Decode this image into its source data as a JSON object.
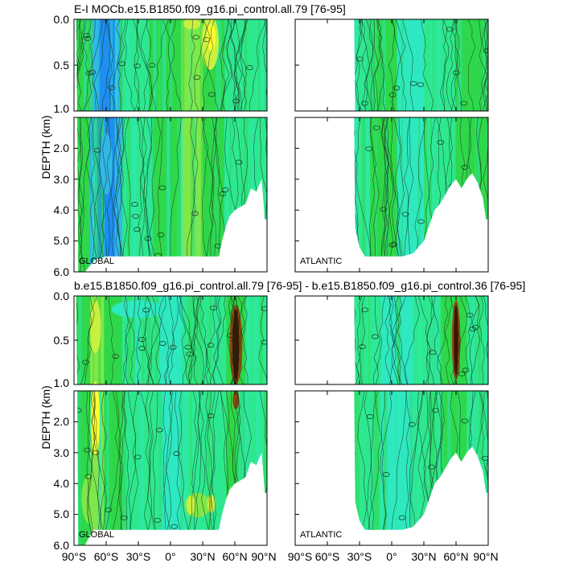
{
  "palette": {
    "blue": "#1e8ef0",
    "light_blue": "#2fb8e8",
    "cyan": "#2ee8c0",
    "cyan_green": "#2ee890",
    "green": "#2ed84a",
    "light_green": "#7ee84a",
    "yellow_green": "#c8f040",
    "yellow": "#ffff30",
    "brown": "#8a4a10",
    "dark_brown": "#3a1500",
    "contour_line": "#1a2e1a"
  },
  "chart_data": [
    {
      "type": "heatmap",
      "title": "E-I MOCb.e15.B1850.f09_g16.pi_control.all.79 [76-95]",
      "region_label": "GLOBAL",
      "ylabel": "DEPTH (km)",
      "x_range": [
        -90,
        90
      ],
      "y_range_upper": [
        0,
        1
      ],
      "y_range_lower": [
        1,
        6
      ],
      "y_ticks_upper": [
        "0.0",
        "0.5",
        "1.0"
      ],
      "y_ticks_lower": [
        "2.0",
        "3.0",
        "4.0",
        "5.0",
        "6.0"
      ],
      "ocean_floor": [
        [
          -90,
          -1
        ],
        [
          -88,
          -1
        ],
        [
          -87,
          1.0
        ],
        [
          -86,
          6.0
        ],
        [
          -80,
          6.0
        ],
        [
          -70,
          5.6
        ],
        [
          -60,
          5.5
        ],
        [
          -50,
          5.5
        ],
        [
          -40,
          5.5
        ],
        [
          -30,
          5.5
        ],
        [
          -20,
          5.5
        ],
        [
          -10,
          5.5
        ],
        [
          0,
          5.5
        ],
        [
          10,
          5.5
        ],
        [
          20,
          5.5
        ],
        [
          30,
          5.5
        ],
        [
          45,
          5.5
        ],
        [
          48,
          5.0
        ],
        [
          52,
          4.5
        ],
        [
          55,
          4.2
        ],
        [
          60,
          4.0
        ],
        [
          65,
          3.9
        ],
        [
          70,
          3.8
        ],
        [
          75,
          3.3
        ],
        [
          80,
          3.4
        ],
        [
          85,
          3.0
        ],
        [
          88,
          4.3
        ],
        [
          90,
          4.3
        ]
      ],
      "fill_bands": [
        {
          "x": [
            -90,
            -75
          ],
          "color": "green"
        },
        {
          "x": [
            -75,
            -68
          ],
          "color": "light_blue"
        },
        {
          "x": [
            -68,
            -52
          ],
          "color": "blue"
        },
        {
          "x": [
            -52,
            -45
          ],
          "color": "light_blue"
        },
        {
          "x": [
            -45,
            -20
          ],
          "color": "cyan_green"
        },
        {
          "x": [
            -20,
            10
          ],
          "color": "green"
        },
        {
          "x": [
            10,
            30
          ],
          "color": "light_green"
        },
        {
          "x": [
            30,
            50
          ],
          "color": "green"
        },
        {
          "x": [
            50,
            90
          ],
          "color": "cyan_green"
        }
      ],
      "patches": [
        {
          "x": 37,
          "y": 0.25,
          "rx": 8,
          "ry": 0.3,
          "color": "yellow_green"
        },
        {
          "x": 38,
          "y": 0.2,
          "rx": 4,
          "ry": 0.15,
          "color": "yellow"
        },
        {
          "x": 20,
          "y": 0.05,
          "rx": 8,
          "ry": 0.06,
          "color": "yellow_green"
        },
        {
          "x": -60,
          "y": 2.5,
          "rx": 6,
          "ry": 1.0,
          "color": "light_blue"
        }
      ]
    },
    {
      "type": "heatmap",
      "title": "",
      "region_label": "ATLANTIC",
      "x_range": [
        -90,
        90
      ],
      "y_range_upper": [
        0,
        1
      ],
      "y_range_lower": [
        1,
        6
      ],
      "ocean_floor": [
        [
          -90,
          -1
        ],
        [
          -35,
          -1
        ],
        [
          -34,
          4.6
        ],
        [
          -30,
          5.2
        ],
        [
          -25,
          5.5
        ],
        [
          -10,
          5.5
        ],
        [
          0,
          5.5
        ],
        [
          10,
          5.5
        ],
        [
          20,
          5.4
        ],
        [
          25,
          5.2
        ],
        [
          30,
          5.0
        ],
        [
          35,
          4.5
        ],
        [
          40,
          4.0
        ],
        [
          45,
          3.8
        ],
        [
          50,
          3.5
        ],
        [
          55,
          3.2
        ],
        [
          60,
          3.0
        ],
        [
          65,
          3.3
        ],
        [
          70,
          3.0
        ],
        [
          75,
          2.8
        ],
        [
          80,
          3.1
        ],
        [
          85,
          3.6
        ],
        [
          88,
          4.3
        ],
        [
          90,
          4.3
        ]
      ],
      "fill_bands": [
        {
          "x": [
            -35,
            -20
          ],
          "color": "cyan_green"
        },
        {
          "x": [
            -20,
            5
          ],
          "color": "green"
        },
        {
          "x": [
            5,
            30
          ],
          "color": "cyan"
        },
        {
          "x": [
            30,
            60
          ],
          "color": "cyan_green"
        },
        {
          "x": [
            60,
            90
          ],
          "color": "green"
        }
      ],
      "patches": []
    },
    {
      "type": "heatmap",
      "title": "b.e15.B1850.f09_g16.pi_control.all.79 [76-95] - b.e15.B1850.f09_g16.pi_control.36 [76-95]",
      "region_label": "GLOBAL",
      "ylabel": "DEPTH (km)",
      "x_range": [
        -90,
        90
      ],
      "y_range_upper": [
        0,
        1
      ],
      "y_range_lower": [
        1,
        6
      ],
      "y_ticks_upper": [
        "0.0",
        "0.5",
        "1.0"
      ],
      "y_ticks_lower": [
        "2.0",
        "3.0",
        "4.0",
        "5.0",
        "6.0"
      ],
      "ocean_floor": [
        [
          -90,
          -1
        ],
        [
          -88,
          -1
        ],
        [
          -87,
          1.0
        ],
        [
          -86,
          6.0
        ],
        [
          -80,
          6.0
        ],
        [
          -72,
          5.5
        ],
        [
          -60,
          5.5
        ],
        [
          -50,
          5.5
        ],
        [
          -40,
          5.5
        ],
        [
          -30,
          5.5
        ],
        [
          -20,
          5.5
        ],
        [
          -10,
          5.5
        ],
        [
          0,
          5.5
        ],
        [
          10,
          5.5
        ],
        [
          20,
          5.5
        ],
        [
          30,
          5.5
        ],
        [
          45,
          5.5
        ],
        [
          48,
          5.0
        ],
        [
          52,
          4.5
        ],
        [
          55,
          4.2
        ],
        [
          60,
          4.0
        ],
        [
          65,
          3.9
        ],
        [
          70,
          3.8
        ],
        [
          75,
          3.3
        ],
        [
          80,
          3.4
        ],
        [
          85,
          3.0
        ],
        [
          88,
          4.3
        ],
        [
          90,
          4.3
        ]
      ],
      "fill_bands": [
        {
          "x": [
            -90,
            -75
          ],
          "color": "green"
        },
        {
          "x": [
            -75,
            -62
          ],
          "color": "light_green"
        },
        {
          "x": [
            -62,
            -45
          ],
          "color": "green"
        },
        {
          "x": [
            -45,
            -10
          ],
          "color": "cyan_green"
        },
        {
          "x": [
            -10,
            10
          ],
          "color": "cyan"
        },
        {
          "x": [
            10,
            52
          ],
          "color": "cyan_green"
        },
        {
          "x": [
            52,
            70
          ],
          "color": "green"
        },
        {
          "x": [
            70,
            90
          ],
          "color": "cyan_green"
        }
      ],
      "patches": [
        {
          "x": -70,
          "y": 1.9,
          "rx": 4,
          "ry": 1.2,
          "color": "yellow"
        },
        {
          "x": -70,
          "y": 0.35,
          "rx": 5,
          "ry": 0.3,
          "color": "yellow_green"
        },
        {
          "x": 61,
          "y": 0.55,
          "rx": 6,
          "ry": 0.45,
          "color": "brown"
        },
        {
          "x": 61,
          "y": 0.55,
          "rx": 3,
          "ry": 0.4,
          "color": "dark_brown"
        },
        {
          "x": 61,
          "y": 1.3,
          "rx": 3,
          "ry": 0.3,
          "color": "brown"
        },
        {
          "x": 25,
          "y": 4.7,
          "rx": 12,
          "ry": 0.4,
          "color": "light_green"
        },
        {
          "x": 19,
          "y": 4.7,
          "rx": 4,
          "ry": 0.3,
          "color": "yellow_green"
        },
        {
          "x": 38,
          "y": 4.65,
          "rx": 4,
          "ry": 0.3,
          "color": "yellow_green"
        },
        {
          "x": -75,
          "y": 4.5,
          "rx": 8,
          "ry": 0.8,
          "color": "light_green"
        },
        {
          "x": -30,
          "y": 0.15,
          "rx": 25,
          "ry": 0.1,
          "color": "cyan"
        }
      ]
    },
    {
      "type": "heatmap",
      "title": "",
      "region_label": "ATLANTIC",
      "x_range": [
        -90,
        90
      ],
      "x_tick_labels": [
        "90°S",
        "60°S",
        "30°S",
        "0°",
        "30°N",
        "60°N",
        "90°N"
      ],
      "y_range_upper": [
        0,
        1
      ],
      "y_range_lower": [
        1,
        6
      ],
      "ocean_floor": [
        [
          -90,
          -1
        ],
        [
          -35,
          -1
        ],
        [
          -34,
          4.6
        ],
        [
          -30,
          5.2
        ],
        [
          -25,
          5.5
        ],
        [
          -10,
          5.5
        ],
        [
          0,
          5.5
        ],
        [
          10,
          5.5
        ],
        [
          20,
          5.4
        ],
        [
          25,
          5.2
        ],
        [
          30,
          5.0
        ],
        [
          35,
          4.5
        ],
        [
          40,
          4.0
        ],
        [
          45,
          3.8
        ],
        [
          50,
          3.5
        ],
        [
          55,
          3.2
        ],
        [
          60,
          3.0
        ],
        [
          65,
          3.3
        ],
        [
          70,
          3.0
        ],
        [
          75,
          2.8
        ],
        [
          80,
          3.1
        ],
        [
          85,
          3.6
        ],
        [
          88,
          4.3
        ],
        [
          90,
          4.3
        ]
      ],
      "fill_bands": [
        {
          "x": [
            -35,
            -10
          ],
          "color": "cyan_green"
        },
        {
          "x": [
            -10,
            20
          ],
          "color": "cyan"
        },
        {
          "x": [
            20,
            45
          ],
          "color": "cyan_green"
        },
        {
          "x": [
            45,
            70
          ],
          "color": "green"
        },
        {
          "x": [
            70,
            90
          ],
          "color": "cyan_green"
        }
      ],
      "patches": [
        {
          "x": 60,
          "y": 0.5,
          "rx": 4,
          "ry": 0.45,
          "color": "brown"
        },
        {
          "x": 60,
          "y": 0.5,
          "rx": 2,
          "ry": 0.4,
          "color": "dark_brown"
        }
      ]
    }
  ],
  "x_tick_labels": [
    "90°S",
    "60°S",
    "30°S",
    "0°",
    "30°N",
    "60°N",
    "90°N"
  ]
}
